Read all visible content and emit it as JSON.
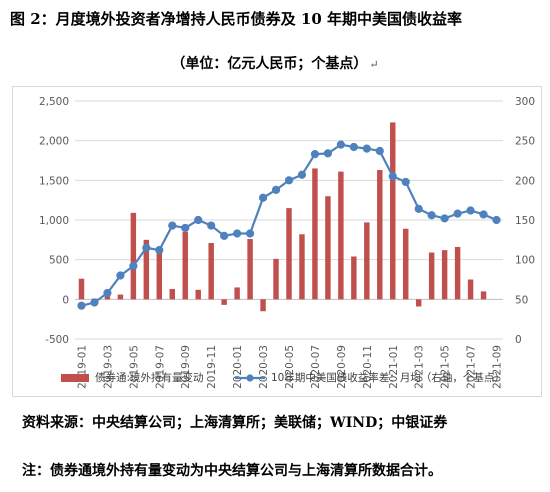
{
  "title": "图 2：月度境外投资者净增持人民币债券及 10 年期中美国债收益率",
  "subtitle": "（单位：亿元人民币；个基点）",
  "paragraph_mark": "↵",
  "source": "资料来源：中央结算公司；上海清算所；美联储；WIND；中银证券",
  "note": "注：债券通境外持有量变动为中央结算公司与上海清算所数据合计。",
  "chart_data": {
    "type": "bar",
    "categories": [
      "2019-01",
      "2019-02",
      "2019-03",
      "2019-04",
      "2019-05",
      "2019-06",
      "2019-07",
      "2019-08",
      "2019-09",
      "2019-10",
      "2019-11",
      "2019-12",
      "2020-01",
      "2020-02",
      "2020-03",
      "2020-04",
      "2020-05",
      "2020-06",
      "2020-07",
      "2020-08",
      "2020-09",
      "2020-10",
      "2020-11",
      "2020-12",
      "2021-01",
      "2021-02",
      "2021-03",
      "2021-04",
      "2021-05",
      "2021-06",
      "2021-07",
      "2021-08",
      "2021-09"
    ],
    "x_tick_labels": [
      "2019-01",
      "2019-03",
      "2019-05",
      "2019-07",
      "2019-09",
      "2019-11",
      "2020-01",
      "2020-03",
      "2020-05",
      "2020-07",
      "2020-09",
      "2020-11",
      "2021-01",
      "2021-03",
      "2021-05",
      "2021-07",
      "2021-09"
    ],
    "series": [
      {
        "name": "债券通:境外持有量变动",
        "type": "bar",
        "axis": "left",
        "color": "#c0504d",
        "values": [
          260,
          10,
          50,
          60,
          1090,
          750,
          600,
          130,
          850,
          120,
          710,
          -70,
          150,
          760,
          -150,
          510,
          1150,
          820,
          1650,
          1300,
          1610,
          540,
          970,
          1630,
          2230,
          890,
          -90,
          590,
          620,
          660,
          250,
          100,
          0
        ]
      },
      {
        "name": "10年期中美国债收益率差：月均（右轴，个基点）",
        "type": "line",
        "axis": "right",
        "color": "#4f81bd",
        "values": [
          42,
          46,
          58,
          80,
          92,
          115,
          112,
          143,
          140,
          150,
          143,
          130,
          133,
          133,
          178,
          188,
          200,
          207,
          233,
          234,
          245,
          242,
          240,
          237,
          205,
          198,
          164,
          156,
          152,
          158,
          162,
          157,
          150
        ]
      }
    ],
    "y_left": {
      "min": -500,
      "max": 2500,
      "ticks": [
        "-500",
        "0",
        "500",
        "1,000",
        "1,500",
        "2,000",
        "2,500"
      ]
    },
    "y_right": {
      "min": 0,
      "max": 300,
      "ticks": [
        "0",
        "50",
        "100",
        "150",
        "200",
        "250",
        "300"
      ]
    },
    "gridlines": true,
    "legend_position": "bottom"
  }
}
